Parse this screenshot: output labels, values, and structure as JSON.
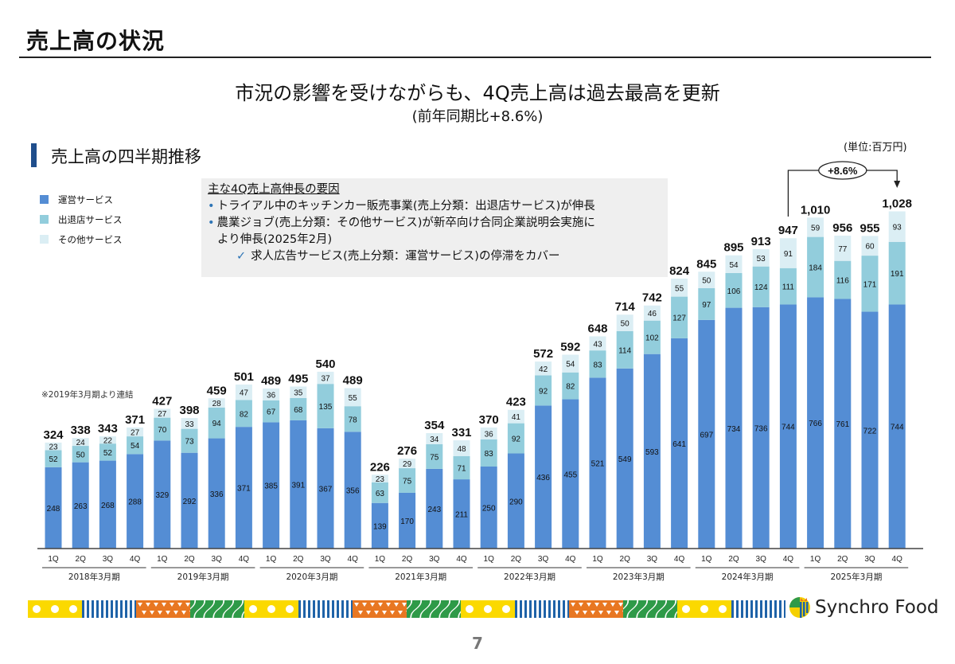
{
  "slide": {
    "title": "売上高の状況",
    "headline": "市況の影響を受けながらも、4Q売上高は過去最高を更新",
    "subheadline": "(前年同期比+8.6%)",
    "section_title": "売上高の四半期推移",
    "unit_label": "(単位:百万円)",
    "consolidation_note": "※2019年3月期より連結",
    "page_number": "7",
    "logo_text": "Synchro Food"
  },
  "notes": {
    "heading": "主な4Q売上高伸長の要因",
    "bullet_glyph": "•",
    "check_glyph": "✓",
    "bullets": [
      "トライアル中のキッチンカー販売事業(売上分類：出退店サービス)が伸長",
      "農業ジョブ(売上分類：その他サービス)が新卒向け合同企業説明会実施に",
      "より伸長(2025年2月)"
    ],
    "check_item": "求人広告サービス(売上分類：運営サービス)の停滞をカバー"
  },
  "colors": {
    "operations": "#548dd4",
    "store_services": "#92cddc",
    "other": "#dbeef4",
    "section_accent": "#1f4e8c",
    "bullet_accent": "#2e75b6"
  },
  "chart_data": {
    "type": "bar",
    "stacked": true,
    "title": "売上高の四半期推移",
    "ylabel": "(単位:百万円)",
    "ylim": [
      0,
      1100
    ],
    "grid": false,
    "legend_position": "top-left",
    "fiscal_years": [
      "2018年3月期",
      "2019年3月期",
      "2020年3月期",
      "2021年3月期",
      "2022年3月期",
      "2023年3月期",
      "2024年3月期",
      "2025年3月期"
    ],
    "quarter_labels": [
      "1Q",
      "2Q",
      "3Q",
      "4Q"
    ],
    "categories": [
      "2018/3 1Q",
      "2018/3 2Q",
      "2018/3 3Q",
      "2018/3 4Q",
      "2019/3 1Q",
      "2019/3 2Q",
      "2019/3 3Q",
      "2019/3 4Q",
      "2020/3 1Q",
      "2020/3 2Q",
      "2020/3 3Q",
      "2020/3 4Q",
      "2021/3 1Q",
      "2021/3 2Q",
      "2021/3 3Q",
      "2021/3 4Q",
      "2022/3 1Q",
      "2022/3 2Q",
      "2022/3 3Q",
      "2022/3 4Q",
      "2023/3 1Q",
      "2023/3 2Q",
      "2023/3 3Q",
      "2023/3 4Q",
      "2024/3 1Q",
      "2024/3 2Q",
      "2024/3 3Q",
      "2024/3 4Q",
      "2025/3 1Q",
      "2025/3 2Q",
      "2025/3 3Q",
      "2025/3 4Q"
    ],
    "series": [
      {
        "name": "運営サービス",
        "values": [
          248,
          263,
          268,
          288,
          329,
          292,
          336,
          371,
          385,
          391,
          367,
          356,
          139,
          170,
          243,
          211,
          250,
          290,
          436,
          455,
          521,
          549,
          593,
          641,
          697,
          734,
          736,
          744,
          766,
          761,
          722,
          744
        ]
      },
      {
        "name": "出退店サービス",
        "values": [
          52,
          50,
          52,
          54,
          70,
          73,
          94,
          82,
          67,
          68,
          135,
          78,
          63,
          75,
          75,
          71,
          83,
          92,
          92,
          82,
          83,
          114,
          102,
          127,
          97,
          106,
          124,
          111,
          184,
          116,
          171,
          191
        ]
      },
      {
        "name": "その他サービス",
        "values": [
          23,
          24,
          22,
          27,
          27,
          33,
          28,
          47,
          36,
          35,
          37,
          55,
          23,
          29,
          34,
          48,
          36,
          41,
          42,
          54,
          43,
          50,
          46,
          55,
          50,
          54,
          53,
          91,
          59,
          77,
          60,
          93
        ]
      }
    ],
    "totals": [
      "324",
      "338",
      "343",
      "371",
      "427",
      "398",
      "459",
      "501",
      "489",
      "495",
      "540",
      "489",
      "226",
      "276",
      "354",
      "331",
      "370",
      "423",
      "572",
      "592",
      "648",
      "714",
      "742",
      "824",
      "845",
      "895",
      "913",
      "947",
      "1,010",
      "956",
      "955",
      "1,028"
    ],
    "annotation": {
      "label": "+8.6%",
      "from": "2024/3 4Q",
      "to": "2025/3 4Q"
    }
  }
}
